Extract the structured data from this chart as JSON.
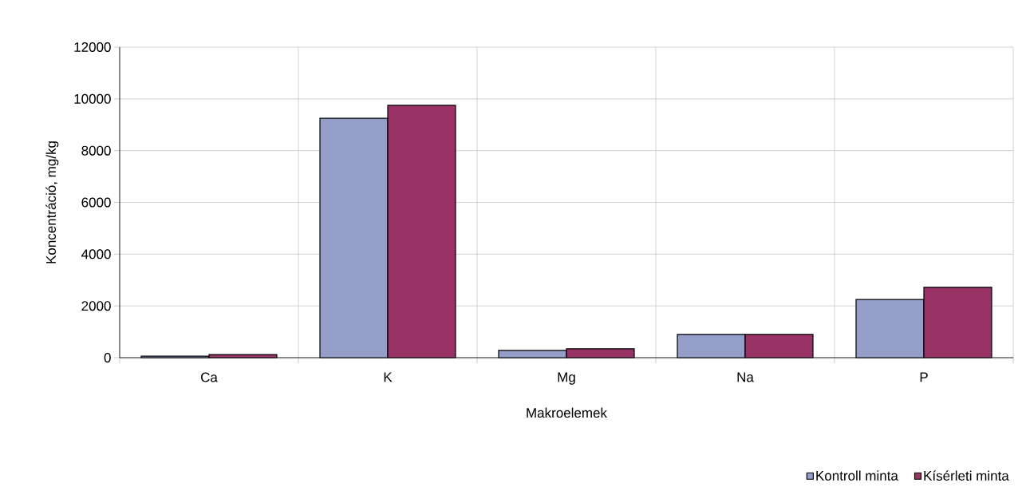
{
  "chart_data": {
    "type": "bar",
    "xlabel": "Makroelemek",
    "ylabel": "Koncentráció, mg/kg",
    "categories": [
      "Ca",
      "K",
      "Mg",
      "Na",
      "P"
    ],
    "series": [
      {
        "name": "Kontroll minta",
        "color": "#959dc9",
        "values": [
          60,
          9250,
          280,
          900,
          2250
        ]
      },
      {
        "name": "Kísérleti minta",
        "color": "#993366",
        "values": [
          120,
          9750,
          340,
          900,
          2720
        ]
      }
    ],
    "ylim": [
      0,
      12000
    ],
    "yticks": [
      0,
      2000,
      4000,
      6000,
      8000,
      10000,
      12000
    ],
    "grid": true,
    "legend": "bottom right"
  }
}
